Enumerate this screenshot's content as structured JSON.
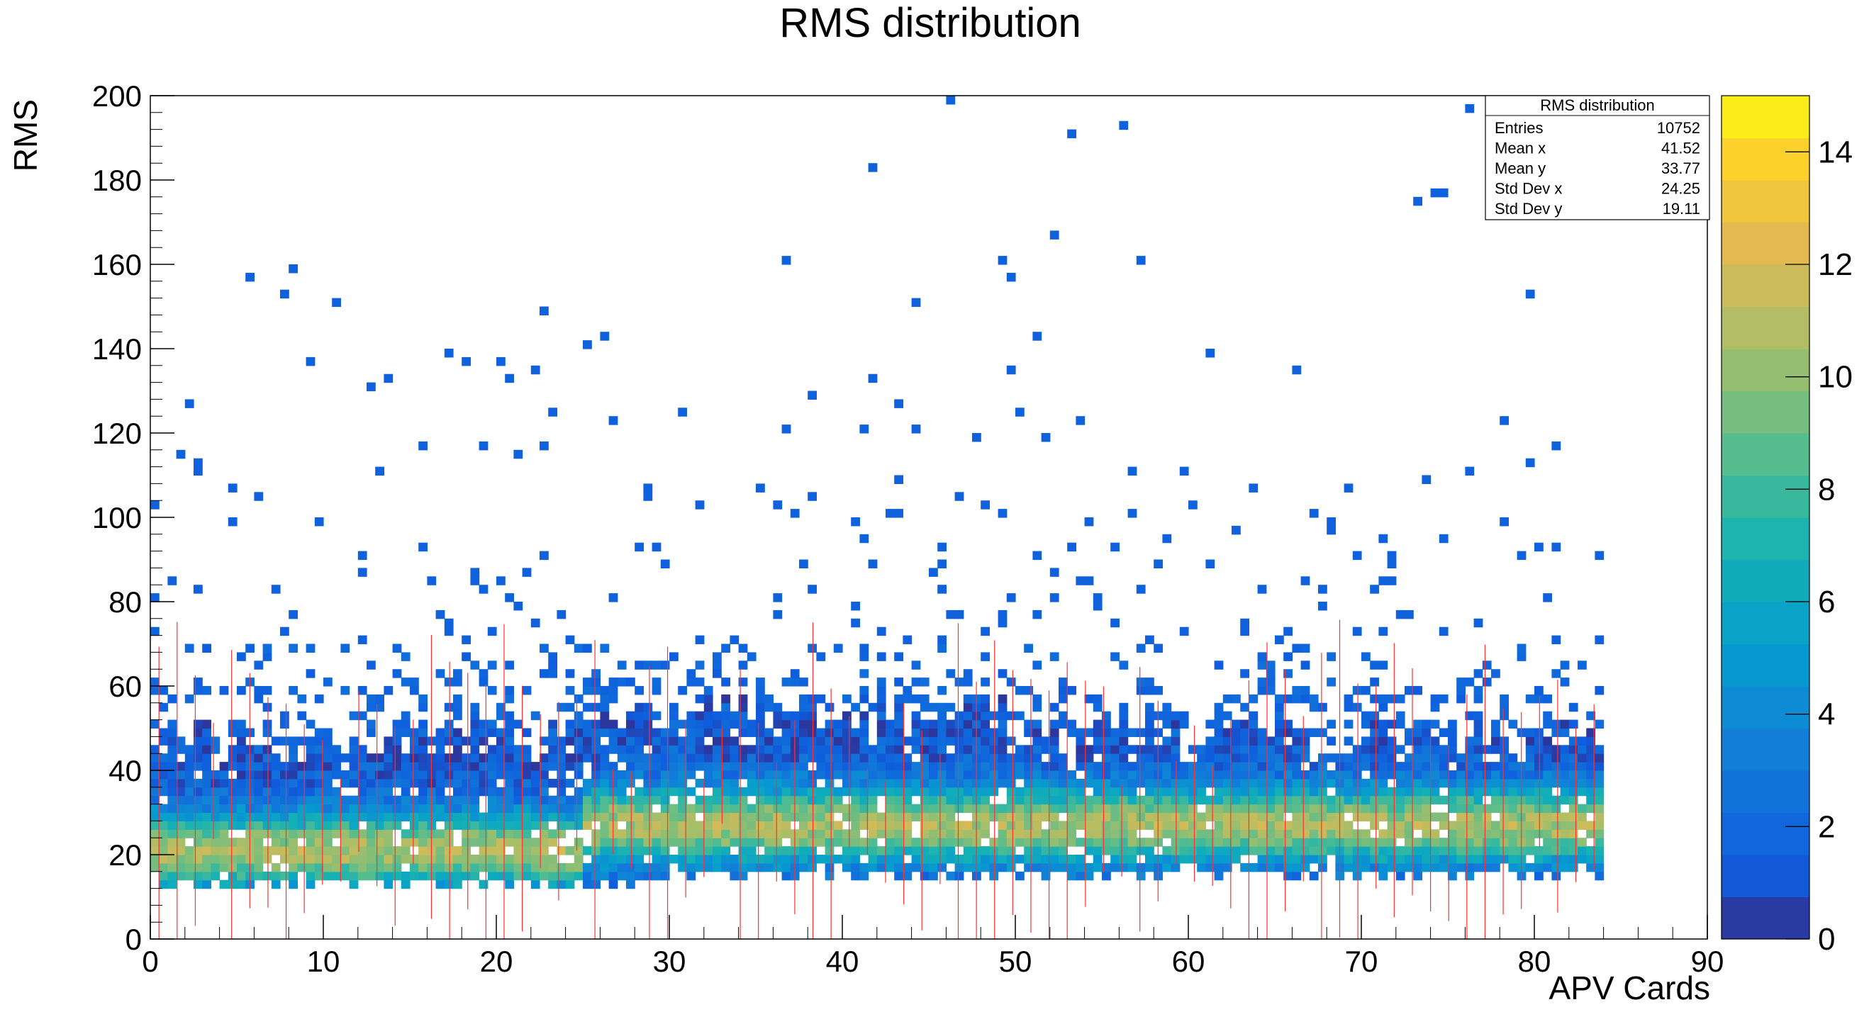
{
  "chart_data": {
    "type": "heatmap",
    "title": "RMS distribution",
    "xlabel": "APV Cards",
    "ylabel": "RMS",
    "xlim": [
      0,
      90
    ],
    "ylim": [
      0,
      200
    ],
    "x_ticks": [
      "0",
      "10",
      "20",
      "30",
      "40",
      "50",
      "60",
      "70",
      "80",
      "90"
    ],
    "y_ticks": [
      "0",
      "20",
      "40",
      "60",
      "80",
      "100",
      "120",
      "140",
      "160",
      "180",
      "200"
    ],
    "colorbar": {
      "range": [
        0,
        15
      ],
      "ticks": [
        "0",
        "2",
        "4",
        "6",
        "8",
        "10",
        "12",
        "14"
      ]
    },
    "occupied_x_range": [
      0,
      84
    ],
    "stats_box": {
      "title": "RMS distribution",
      "rows": [
        {
          "label": "Entries",
          "value": "10752"
        },
        {
          "label": "Mean x",
          "value": "41.52"
        },
        {
          "label": "Mean y",
          "value": "33.77"
        },
        {
          "label": "Std Dev x",
          "value": "24.25"
        },
        {
          "label": "Std Dev y",
          "value": "19.11"
        }
      ]
    },
    "grid": false,
    "legend_position": "top-right"
  }
}
